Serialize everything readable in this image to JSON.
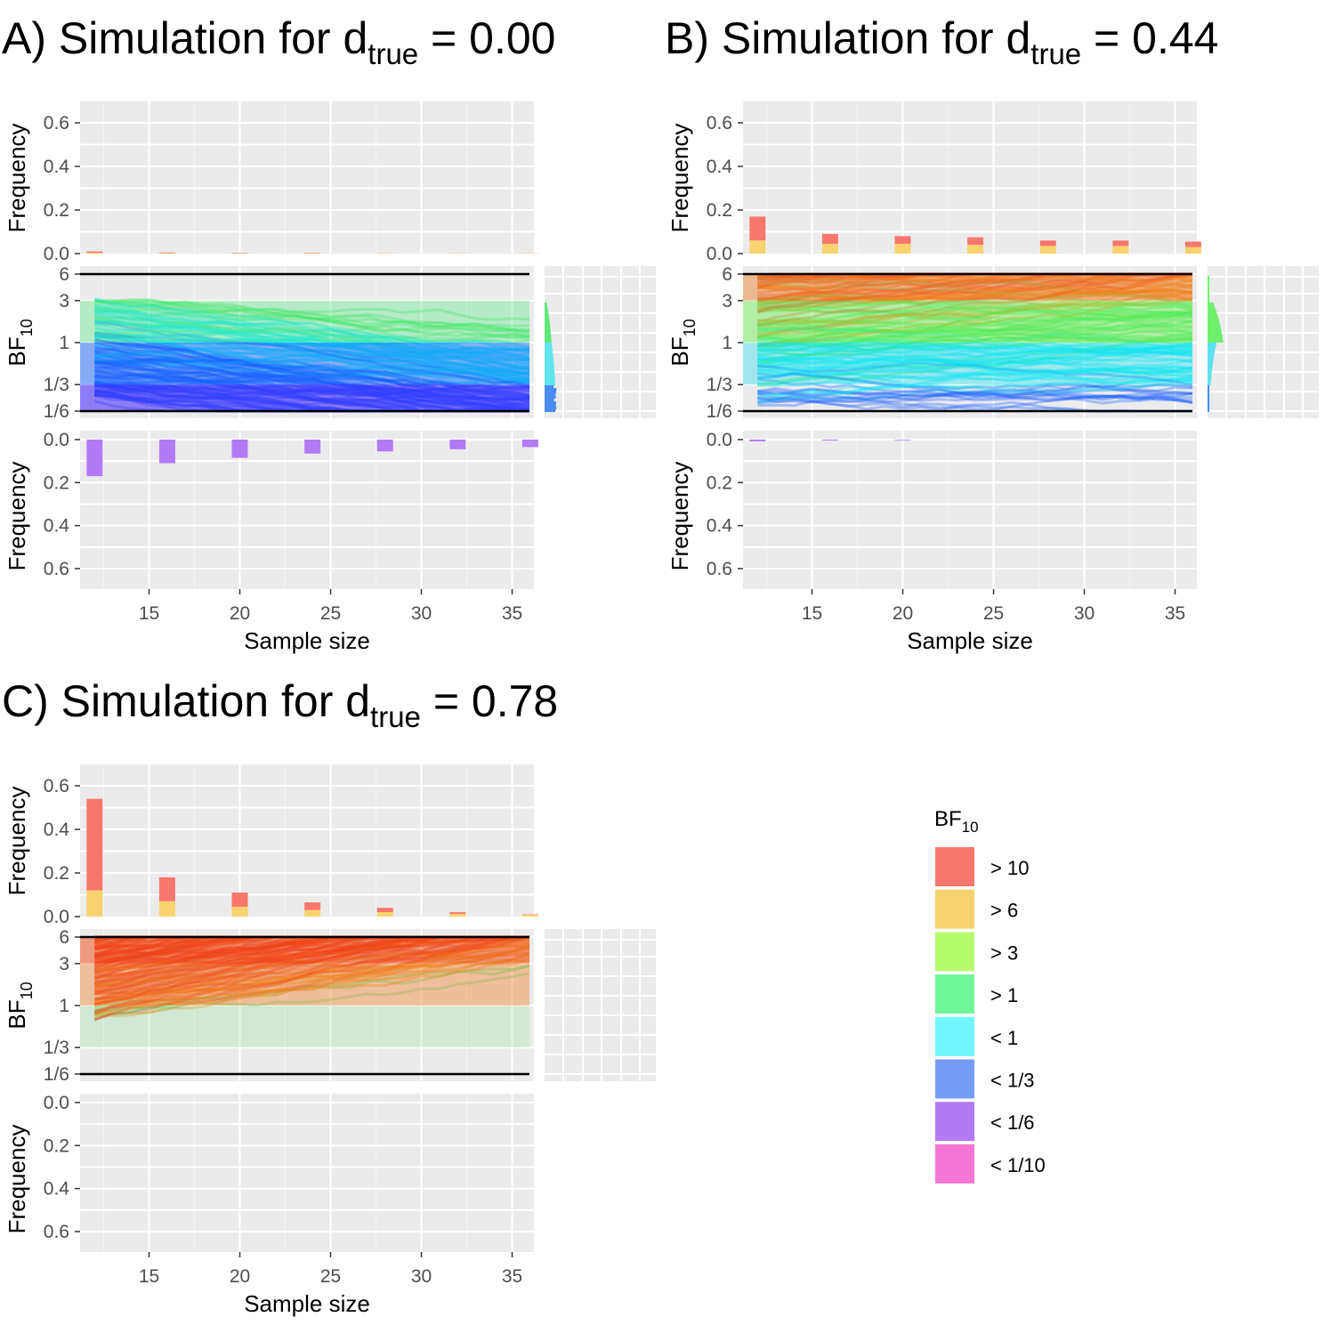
{
  "panels": [
    {
      "id": "A",
      "title_main": "A) Simulation for d",
      "title_sub": "true",
      "title_tail": " = 0.00",
      "top_freq": {
        ">10": [
          0.01,
          0.005,
          0.004,
          0.004,
          0.002,
          0.002,
          0.002
        ],
        ">6": [
          0.004,
          0.002,
          0.002,
          0.002,
          0.001,
          0.001,
          0.001
        ]
      },
      "bottom_freq": {
        "<1/6": [
          0.17,
          0.11,
          0.085,
          0.065,
          0.055,
          0.045,
          0.035
        ],
        "<1/10": [
          0,
          0,
          0,
          0,
          0,
          0,
          0
        ]
      },
      "lines_end_gradient": [
        "#7aa8ff",
        "#0050ff",
        "#2020ff",
        "#5a00ff"
      ],
      "line_start_colors": [
        "#9cff60",
        "#10e0ff",
        "#1870ff",
        "#3030ff",
        "#5a10ff"
      ],
      "side_hist": true,
      "side_hist_colors": [
        "#5ee87a",
        "#62e4f0",
        "#4a8cf0"
      ]
    },
    {
      "id": "B",
      "title_main": "B) Simulation for d",
      "title_sub": "true",
      "title_tail": " = 0.44",
      "top_freq": {
        ">10": [
          0.17,
          0.09,
          0.08,
          0.075,
          0.06,
          0.06,
          0.055
        ],
        ">6": [
          0.06,
          0.045,
          0.045,
          0.04,
          0.035,
          0.035,
          0.03
        ]
      },
      "bottom_freq": {
        "<1/6": [
          0.008,
          0.004,
          0.003,
          0,
          0,
          0,
          0
        ],
        "<1/10": [
          0,
          0,
          0,
          0,
          0,
          0,
          0
        ]
      },
      "side_hist": true,
      "side_hist_colors": [
        "#6ef06e",
        "#5ee0f0",
        "#4a8cf0"
      ]
    },
    {
      "id": "C",
      "title_main": "C) Simulation for d",
      "title_sub": "true",
      "title_tail": " = 0.78",
      "top_freq": {
        ">10": [
          0.54,
          0.18,
          0.11,
          0.065,
          0.04,
          0.02,
          0.01
        ],
        ">6": [
          0.12,
          0.07,
          0.045,
          0.03,
          0.02,
          0.012,
          0.008
        ]
      },
      "bottom_freq": {
        "<1/6": [
          0,
          0,
          0,
          0,
          0,
          0,
          0
        ],
        "<1/10": [
          0,
          0,
          0,
          0,
          0,
          0,
          0
        ]
      },
      "side_hist": false
    }
  ],
  "axes": {
    "freq_label": "Frequency",
    "freq_ticks": [
      "0.0",
      "0.2",
      "0.4",
      "0.6"
    ],
    "bf_label_main": "BF",
    "bf_label_sub": "10",
    "bf_ticks": [
      "6",
      "3",
      "1",
      "1/3",
      "1/6"
    ],
    "x_label": "Sample size",
    "x_ticks": [
      "15",
      "20",
      "25",
      "30",
      "35"
    ]
  },
  "legend": {
    "title_main": "BF",
    "title_sub": "10",
    "items": [
      {
        "label": "> 10",
        "color": "#f8766d"
      },
      {
        "label": "> 6",
        "color": "#f6d36e"
      },
      {
        "label": "> 3",
        "color": "#b6fa6e"
      },
      {
        "label": "> 1",
        "color": "#6ff59a"
      },
      {
        "label": "< 1",
        "color": "#6ff6fb"
      },
      {
        "label": "< 1/3",
        "color": "#769cf6"
      },
      {
        "label": "< 1/6",
        "color": "#b37af5"
      },
      {
        "label": "< 1/10",
        "color": "#f577d3"
      }
    ]
  },
  "chart_data": [
    {
      "type": "bar",
      "panel": "A",
      "title": "A) Simulation for d_true = 0.00",
      "x": [
        12,
        16,
        20,
        24,
        28,
        32,
        36
      ],
      "xlabel": "Sample size",
      "ylabel": "Frequency",
      "ylim": [
        0,
        0.6
      ],
      "series": [
        {
          "name": "> 10",
          "values": [
            0.01,
            0.005,
            0.004,
            0.004,
            0.002,
            0.002,
            0.002
          ]
        },
        {
          "name": "> 6",
          "values": [
            0.004,
            0.002,
            0.002,
            0.002,
            0.001,
            0.001,
            0.001
          ]
        },
        {
          "name": "< 1/6",
          "values": [
            0.17,
            0.11,
            0.085,
            0.065,
            0.055,
            0.045,
            0.035
          ]
        }
      ],
      "bf_ticks": [
        "1/6",
        "1/3",
        "1",
        "3",
        "6"
      ]
    },
    {
      "type": "bar",
      "panel": "B",
      "title": "B) Simulation for d_true = 0.44",
      "x": [
        12,
        16,
        20,
        24,
        28,
        32,
        36
      ],
      "xlabel": "Sample size",
      "ylabel": "Frequency",
      "ylim": [
        0,
        0.6
      ],
      "series": [
        {
          "name": "> 10",
          "values": [
            0.17,
            0.09,
            0.08,
            0.075,
            0.06,
            0.06,
            0.055
          ]
        },
        {
          "name": "> 6",
          "values": [
            0.06,
            0.045,
            0.045,
            0.04,
            0.035,
            0.035,
            0.03
          ]
        },
        {
          "name": "< 1/6",
          "values": [
            0.008,
            0.004,
            0.003,
            0,
            0,
            0,
            0
          ]
        }
      ],
      "bf_ticks": [
        "1/6",
        "1/3",
        "1",
        "3",
        "6"
      ]
    },
    {
      "type": "bar",
      "panel": "C",
      "title": "C) Simulation for d_true = 0.78",
      "x": [
        12,
        16,
        20,
        24,
        28,
        32,
        36
      ],
      "xlabel": "Sample size",
      "ylabel": "Frequency",
      "ylim": [
        0,
        0.6
      ],
      "series": [
        {
          "name": "> 10",
          "values": [
            0.54,
            0.18,
            0.11,
            0.065,
            0.04,
            0.02,
            0.01
          ]
        },
        {
          "name": "> 6",
          "values": [
            0.12,
            0.07,
            0.045,
            0.03,
            0.02,
            0.012,
            0.008
          ]
        },
        {
          "name": "< 1/6",
          "values": [
            0,
            0,
            0,
            0,
            0,
            0,
            0
          ]
        }
      ],
      "bf_ticks": [
        "1/6",
        "1/3",
        "1",
        "3",
        "6"
      ]
    }
  ]
}
